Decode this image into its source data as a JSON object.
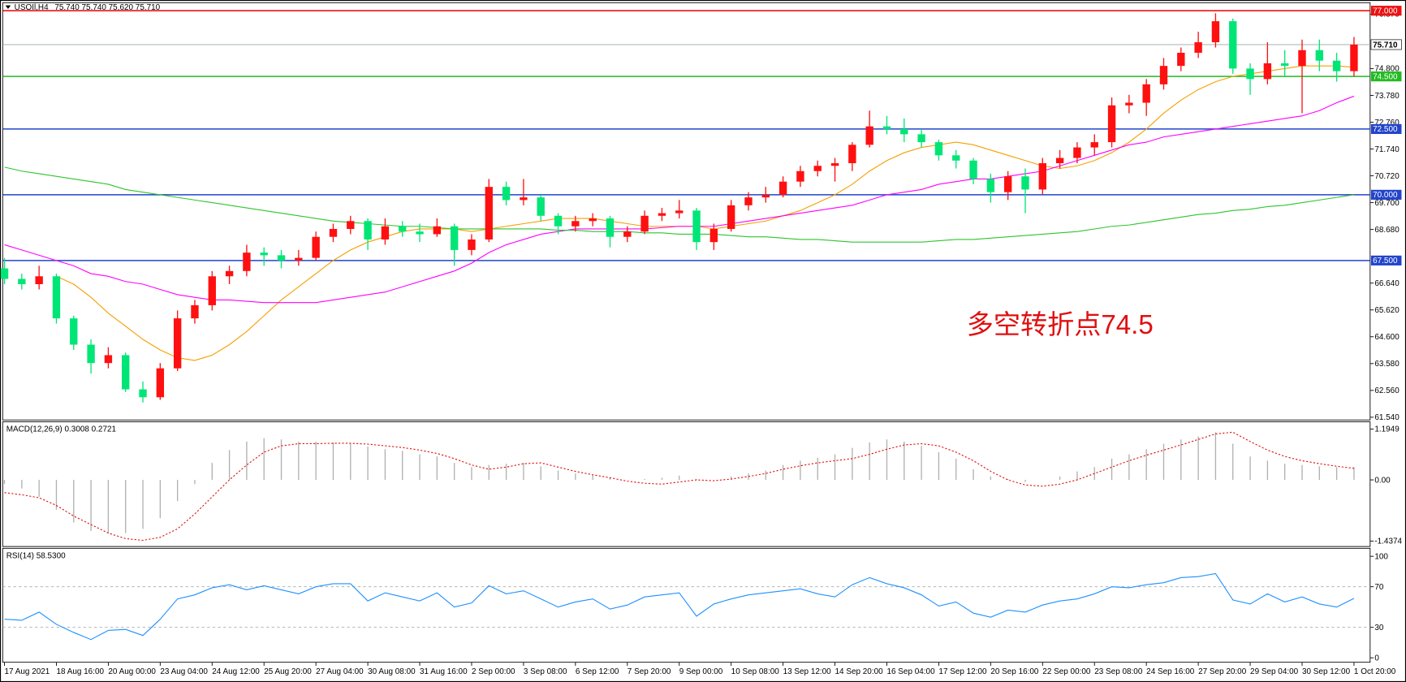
{
  "chart_data": [
    {
      "type": "candlestick",
      "title": "USOIl,H4",
      "subtitle": "75.740 75.740 75.620 75.710",
      "categories": [
        "17 Aug 2021",
        null,
        null,
        "18 Aug 16:00",
        null,
        null,
        "20 Aug 00:00",
        null,
        null,
        "23 Aug 04:00",
        null,
        null,
        "24 Aug 12:00",
        null,
        null,
        "25 Aug 20:00",
        null,
        null,
        "27 Aug 04:00",
        null,
        null,
        "30 Aug 08:00",
        null,
        null,
        "31 Aug 16:00",
        null,
        null,
        "2 Sep 00:00",
        null,
        null,
        "3 Sep 08:00",
        null,
        null,
        "6 Sep 12:00",
        null,
        null,
        "7 Sep 20:00",
        null,
        null,
        "9 Sep 00:00",
        null,
        null,
        "10 Sep 08:00",
        null,
        null,
        "13 Sep 12:00",
        null,
        null,
        "14 Sep 20:00",
        null,
        null,
        "16 Sep 04:00",
        null,
        null,
        "17 Sep 12:00",
        null,
        null,
        "20 Sep 16:00",
        null,
        null,
        "22 Sep 00:00",
        null,
        null,
        "23 Sep 08:00",
        null,
        null,
        "24 Sep 16:00",
        null,
        null,
        "27 Sep 20:00",
        null,
        null,
        "29 Sep 04:00",
        null,
        null,
        "30 Sep 12:00",
        null,
        null,
        "1 Oct 20:00"
      ],
      "ohlc": [
        [
          67.2,
          67.6,
          66.6,
          66.8
        ],
        [
          66.8,
          67.0,
          66.4,
          66.6
        ],
        [
          66.6,
          67.3,
          66.4,
          66.9
        ],
        [
          66.9,
          67.0,
          65.1,
          65.3
        ],
        [
          65.3,
          65.4,
          64.1,
          64.3
        ],
        [
          64.3,
          64.5,
          63.2,
          63.6
        ],
        [
          63.6,
          64.2,
          63.4,
          63.9
        ],
        [
          63.9,
          64.0,
          62.5,
          62.6
        ],
        [
          62.6,
          62.9,
          62.1,
          62.3
        ],
        [
          62.3,
          63.6,
          62.2,
          63.4
        ],
        [
          63.4,
          65.6,
          63.3,
          65.3
        ],
        [
          65.3,
          66.0,
          65.1,
          65.8
        ],
        [
          65.8,
          67.1,
          65.6,
          66.9
        ],
        [
          66.9,
          67.3,
          66.6,
          67.1
        ],
        [
          67.1,
          68.1,
          66.9,
          67.8
        ],
        [
          67.8,
          68.0,
          67.3,
          67.7
        ],
        [
          67.7,
          67.9,
          67.2,
          67.5
        ],
        [
          67.5,
          67.9,
          67.3,
          67.6
        ],
        [
          67.6,
          68.6,
          67.5,
          68.4
        ],
        [
          68.4,
          68.9,
          68.2,
          68.7
        ],
        [
          68.7,
          69.2,
          68.5,
          69.0
        ],
        [
          69.0,
          69.1,
          67.9,
          68.3
        ],
        [
          68.3,
          69.1,
          68.1,
          68.8
        ],
        [
          68.8,
          69.0,
          68.4,
          68.6
        ],
        [
          68.6,
          68.9,
          68.2,
          68.5
        ],
        [
          68.5,
          69.1,
          68.4,
          68.8
        ],
        [
          68.8,
          68.9,
          67.3,
          67.9
        ],
        [
          67.9,
          68.5,
          67.7,
          68.3
        ],
        [
          68.3,
          70.6,
          68.2,
          70.3
        ],
        [
          70.3,
          70.5,
          69.6,
          69.8
        ],
        [
          69.8,
          70.6,
          69.6,
          69.9
        ],
        [
          69.9,
          70.0,
          69.0,
          69.2
        ],
        [
          69.2,
          69.3,
          68.5,
          68.8
        ],
        [
          68.8,
          69.2,
          68.6,
          69.0
        ],
        [
          69.0,
          69.3,
          68.8,
          69.1
        ],
        [
          69.1,
          69.2,
          68.0,
          68.4
        ],
        [
          68.4,
          68.8,
          68.2,
          68.6
        ],
        [
          68.6,
          69.4,
          68.5,
          69.2
        ],
        [
          69.2,
          69.5,
          69.0,
          69.3
        ],
        [
          69.3,
          69.8,
          69.1,
          69.4
        ],
        [
          69.4,
          69.5,
          67.9,
          68.2
        ],
        [
          68.2,
          68.9,
          67.9,
          68.7
        ],
        [
          68.7,
          69.8,
          68.6,
          69.6
        ],
        [
          69.6,
          70.1,
          69.4,
          69.9
        ],
        [
          69.9,
          70.3,
          69.7,
          70.0
        ],
        [
          70.0,
          70.7,
          69.9,
          70.5
        ],
        [
          70.5,
          71.1,
          70.3,
          70.9
        ],
        [
          70.9,
          71.3,
          70.7,
          71.1
        ],
        [
          71.1,
          71.4,
          70.5,
          71.2
        ],
        [
          71.2,
          72.0,
          70.9,
          71.9
        ],
        [
          71.9,
          73.2,
          71.8,
          72.6
        ],
        [
          72.6,
          73.0,
          72.3,
          72.5
        ],
        [
          72.5,
          72.9,
          72.0,
          72.3
        ],
        [
          72.3,
          72.5,
          71.8,
          72.0
        ],
        [
          72.0,
          72.1,
          71.3,
          71.5
        ],
        [
          71.5,
          71.7,
          71.0,
          71.3
        ],
        [
          71.3,
          71.4,
          70.4,
          70.6
        ],
        [
          70.6,
          70.8,
          69.7,
          70.1
        ],
        [
          70.1,
          70.9,
          69.8,
          70.7
        ],
        [
          70.7,
          71.0,
          69.3,
          70.2
        ],
        [
          70.2,
          71.4,
          70.0,
          71.2
        ],
        [
          71.2,
          71.7,
          71.0,
          71.4
        ],
        [
          71.4,
          72.0,
          71.2,
          71.8
        ],
        [
          71.8,
          72.3,
          71.5,
          72.0
        ],
        [
          72.0,
          73.7,
          71.8,
          73.4
        ],
        [
          73.4,
          73.8,
          73.1,
          73.5
        ],
        [
          73.5,
          74.4,
          73.0,
          74.2
        ],
        [
          74.2,
          75.2,
          74.0,
          74.9
        ],
        [
          74.9,
          75.6,
          74.7,
          75.4
        ],
        [
          75.4,
          76.2,
          75.2,
          75.8
        ],
        [
          75.8,
          76.9,
          75.6,
          76.6
        ],
        [
          76.6,
          76.7,
          74.6,
          74.8
        ],
        [
          74.8,
          75.0,
          73.8,
          74.4
        ],
        [
          74.4,
          75.8,
          74.2,
          75.0
        ],
        [
          75.0,
          75.5,
          74.5,
          74.9
        ],
        [
          74.9,
          75.9,
          73.1,
          75.5
        ],
        [
          75.5,
          75.9,
          74.7,
          75.1
        ],
        [
          75.1,
          75.4,
          74.3,
          74.7
        ],
        [
          74.7,
          76.0,
          74.5,
          75.71
        ]
      ],
      "up_color": "#ff1010",
      "down_color": "#00e676",
      "series": [
        {
          "color": "#f5a000",
          "values": [
            null,
            null,
            null,
            66.9,
            66.6,
            66.1,
            65.5,
            65.0,
            64.5,
            64.1,
            63.8,
            63.7,
            63.9,
            64.3,
            64.8,
            65.4,
            66.0,
            66.5,
            67.0,
            67.5,
            67.9,
            68.2,
            68.4,
            68.6,
            68.7,
            68.7,
            68.7,
            68.6,
            68.7,
            68.8,
            68.9,
            69.0,
            69.1,
            69.1,
            69.1,
            69.0,
            68.9,
            68.8,
            68.8,
            68.8,
            68.8,
            68.7,
            68.8,
            68.9,
            69.0,
            69.2,
            69.4,
            69.7,
            70.0,
            70.4,
            70.9,
            71.3,
            71.6,
            71.8,
            71.9,
            72.0,
            71.9,
            71.7,
            71.5,
            71.3,
            71.1,
            71.0,
            71.1,
            71.3,
            71.6,
            72.0,
            72.5,
            73.1,
            73.6,
            74.0,
            74.3,
            74.5,
            74.6,
            74.7,
            74.8,
            74.9,
            74.9,
            74.9,
            74.85
          ]
        },
        {
          "color": "#ff00ff",
          "values": [
            68.1,
            67.9,
            67.7,
            67.5,
            67.3,
            67.0,
            66.9,
            66.7,
            66.6,
            66.4,
            66.2,
            66.1,
            66.0,
            66.0,
            65.95,
            65.9,
            65.9,
            65.9,
            65.9,
            66.0,
            66.1,
            66.2,
            66.3,
            66.5,
            66.7,
            66.9,
            67.1,
            67.4,
            67.8,
            68.1,
            68.3,
            68.5,
            68.6,
            68.7,
            68.7,
            68.7,
            68.7,
            68.7,
            68.75,
            68.8,
            68.8,
            68.8,
            68.9,
            69.0,
            69.1,
            69.2,
            69.3,
            69.4,
            69.5,
            69.6,
            69.8,
            70.0,
            70.1,
            70.2,
            70.4,
            70.5,
            70.6,
            70.6,
            70.7,
            70.8,
            70.9,
            71.1,
            71.3,
            71.5,
            71.7,
            71.9,
            72.0,
            72.2,
            72.3,
            72.4,
            72.5,
            72.6,
            72.7,
            72.8,
            72.9,
            73.0,
            73.2,
            73.5,
            73.75
          ]
        },
        {
          "color": "#2ec42e",
          "values": [
            71.05,
            70.9,
            70.8,
            70.7,
            70.6,
            70.5,
            70.4,
            70.2,
            70.1,
            70.0,
            69.9,
            69.8,
            69.7,
            69.6,
            69.5,
            69.4,
            69.3,
            69.2,
            69.1,
            69.0,
            68.95,
            68.9,
            68.85,
            68.8,
            68.8,
            68.75,
            68.7,
            68.7,
            68.7,
            68.7,
            68.7,
            68.7,
            68.65,
            68.65,
            68.6,
            68.6,
            68.6,
            68.55,
            68.55,
            68.5,
            68.5,
            68.5,
            68.45,
            68.4,
            68.4,
            68.35,
            68.3,
            68.3,
            68.25,
            68.2,
            68.2,
            68.2,
            68.2,
            68.2,
            68.25,
            68.3,
            68.3,
            68.35,
            68.4,
            68.45,
            68.5,
            68.55,
            68.6,
            68.7,
            68.8,
            68.85,
            68.95,
            69.05,
            69.15,
            69.25,
            69.3,
            69.4,
            69.45,
            69.55,
            69.6,
            69.7,
            69.8,
            69.9,
            70.0
          ]
        }
      ],
      "ylim": [
        61.47,
        77.27
      ],
      "yticks": [
        {
          "value": 76.87,
          "label": "76.870"
        },
        {
          "value": 74.8,
          "label": "74.800"
        },
        {
          "value": 73.78,
          "label": "73.780"
        },
        {
          "value": 72.76,
          "label": "72.760"
        },
        {
          "value": 71.74,
          "label": "71.740"
        },
        {
          "value": 70.72,
          "label": "70.720"
        },
        {
          "value": 69.7,
          "label": "69.700"
        },
        {
          "value": 68.68,
          "label": "68.680"
        },
        {
          "value": 66.64,
          "label": "66.640"
        },
        {
          "value": 65.62,
          "label": "65.620"
        },
        {
          "value": 64.6,
          "label": "64.600"
        },
        {
          "value": 63.58,
          "label": "63.580"
        },
        {
          "value": 62.56,
          "label": "62.560"
        },
        {
          "value": 61.54,
          "label": "61.540"
        }
      ],
      "hlines": [
        {
          "value": 77,
          "label": "77.000",
          "color": "#ee1111"
        },
        {
          "value": 74.5,
          "label": "74.500",
          "color": "#22bb22"
        },
        {
          "value": 72.5,
          "label": "72.500",
          "color": "#2244cc"
        },
        {
          "value": 70,
          "label": "70.000",
          "color": "#2244cc"
        },
        {
          "value": 67.5,
          "label": "67.500",
          "color": "#2244cc"
        }
      ],
      "price_line": {
        "value": 75.71,
        "label": "75.710",
        "color": "#9aa8a8"
      },
      "annotation": {
        "text": "多空转折点74.5",
        "color": "#e01010"
      }
    },
    {
      "type": "macd",
      "title": "MACD(12,26,9) 0.3008 0.2721",
      "series": [
        {
          "style": "histogram",
          "color": "#b0b0b0",
          "values": [
            -0.1,
            -0.2,
            -0.4,
            -0.7,
            -1.0,
            -1.2,
            -1.25,
            -1.25,
            -1.15,
            -0.9,
            -0.5,
            -0.1,
            0.4,
            0.7,
            0.9,
            0.98,
            0.95,
            0.9,
            0.9,
            0.88,
            0.85,
            0.78,
            0.72,
            0.68,
            0.6,
            0.55,
            0.4,
            0.3,
            0.35,
            0.38,
            0.4,
            0.32,
            0.22,
            0.15,
            0.12,
            0.05,
            0.0,
            0.02,
            0.05,
            0.1,
            0.02,
            0.0,
            0.08,
            0.15,
            0.22,
            0.35,
            0.45,
            0.52,
            0.6,
            0.75,
            0.88,
            0.95,
            0.9,
            0.8,
            0.65,
            0.5,
            0.25,
            0.08,
            0.02,
            -0.05,
            0.0,
            0.08,
            0.2,
            0.3,
            0.5,
            0.6,
            0.72,
            0.85,
            0.95,
            1.02,
            1.12,
            0.85,
            0.55,
            0.45,
            0.38,
            0.35,
            0.32,
            0.3,
            0.3008
          ]
        },
        {
          "style": "dotted",
          "color": "#e01010",
          "values": [
            -0.3,
            -0.35,
            -0.42,
            -0.6,
            -0.85,
            -1.05,
            -1.25,
            -1.38,
            -1.42,
            -1.35,
            -1.15,
            -0.8,
            -0.4,
            0.0,
            0.35,
            0.65,
            0.8,
            0.85,
            0.85,
            0.86,
            0.86,
            0.84,
            0.8,
            0.76,
            0.7,
            0.62,
            0.5,
            0.35,
            0.25,
            0.3,
            0.38,
            0.4,
            0.3,
            0.2,
            0.12,
            0.05,
            -0.03,
            -0.08,
            -0.1,
            -0.05,
            0.0,
            -0.02,
            0.02,
            0.08,
            0.15,
            0.25,
            0.33,
            0.4,
            0.45,
            0.5,
            0.6,
            0.72,
            0.82,
            0.85,
            0.8,
            0.65,
            0.45,
            0.2,
            0.0,
            -0.12,
            -0.15,
            -0.1,
            0.0,
            0.15,
            0.3,
            0.45,
            0.58,
            0.7,
            0.82,
            0.95,
            1.08,
            1.12,
            0.9,
            0.7,
            0.55,
            0.45,
            0.38,
            0.32,
            0.2721
          ]
        }
      ],
      "ylim": [
        -1.544,
        1.344
      ],
      "yticks": [
        1.1949,
        {
          "value": 0,
          "label": "0.00"
        },
        -1.4374
      ]
    },
    {
      "type": "line",
      "title": "RSI(14) 58.5300",
      "series": [
        {
          "color": "#1e90ff",
          "values": [
            38,
            37,
            45,
            33,
            25,
            18,
            27,
            28,
            22,
            38,
            58,
            62,
            69,
            72,
            67,
            71,
            67,
            63,
            70,
            73,
            73,
            56,
            64,
            60,
            56,
            64,
            50,
            54,
            71,
            63,
            66,
            58,
            50,
            55,
            58,
            48,
            52,
            60,
            62,
            64,
            41,
            53,
            58,
            62,
            64,
            66,
            68,
            63,
            60,
            72,
            79,
            73,
            69,
            62,
            51,
            55,
            44,
            40,
            47,
            45,
            52,
            56,
            58,
            63,
            70,
            69,
            72,
            74,
            79,
            80,
            83,
            57,
            53,
            63,
            55,
            60,
            53,
            50,
            58.53
          ]
        }
      ],
      "ylim": [
        -3.5,
        107
      ],
      "yticks": [
        100,
        70,
        30,
        0
      ],
      "levels": [
        70,
        30
      ]
    }
  ]
}
